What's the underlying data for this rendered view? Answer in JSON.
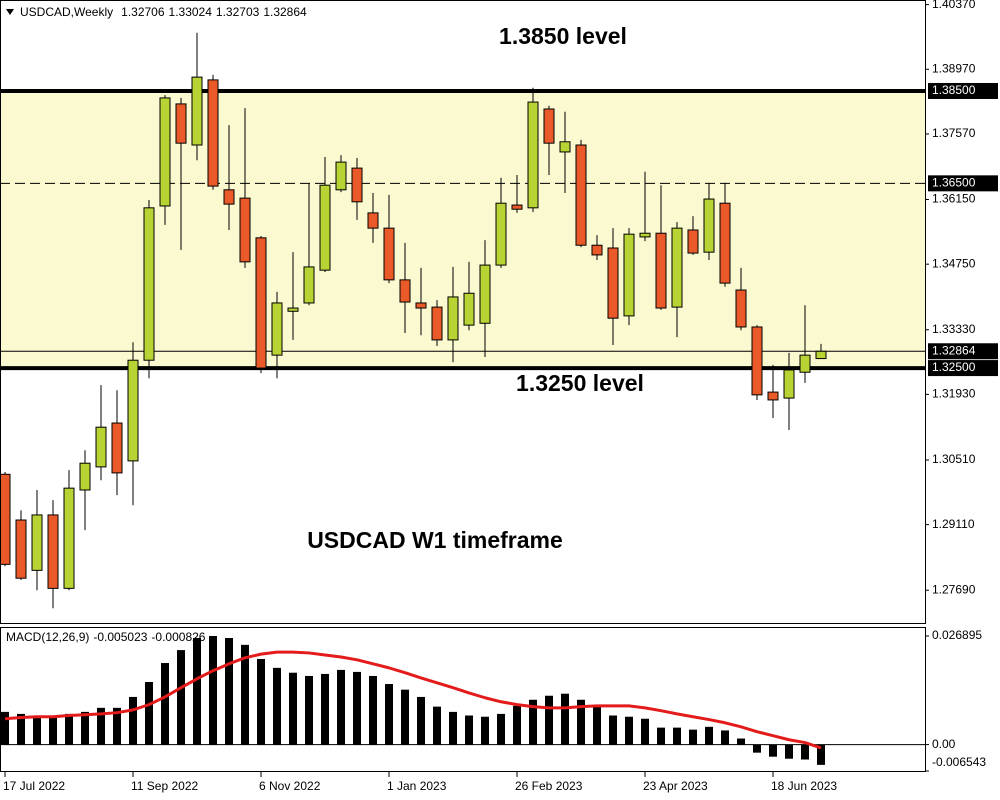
{
  "chart_data": [
    {
      "type": "candlestick",
      "title": "USDCAD,Weekly",
      "categories": [
        "17 Jul 2022",
        null,
        null,
        null,
        null,
        null,
        null,
        null,
        "11 Sep 2022",
        null,
        null,
        null,
        null,
        null,
        null,
        null,
        "6 Nov 2022",
        null,
        null,
        null,
        null,
        null,
        null,
        null,
        "1 Jan 2023",
        null,
        null,
        null,
        null,
        null,
        null,
        null,
        "26 Feb 2023",
        null,
        null,
        null,
        null,
        null,
        null,
        null,
        "23 Apr 2023",
        null,
        null,
        null,
        null,
        null,
        null,
        null,
        "18 Jun 2023",
        null,
        null,
        null
      ],
      "open": [
        1.302,
        1.2921,
        1.2812,
        1.2932,
        1.2773,
        1.2986,
        1.3036,
        1.3131,
        1.3049,
        1.3267,
        1.3601,
        1.3822,
        1.3733,
        1.3874,
        1.3636,
        1.3618,
        1.3532,
        1.3278,
        1.3373,
        1.3391,
        1.3462,
        1.3636,
        1.3683,
        1.3586,
        1.3553,
        1.3441,
        1.3391,
        1.3382,
        1.3311,
        1.3343,
        1.3347,
        1.3473,
        1.3603,
        1.3597,
        1.3811,
        1.3718,
        1.3733,
        1.3516,
        1.351,
        1.3363,
        1.3534,
        1.3542,
        1.3382,
        1.3549,
        1.3501,
        1.3607,
        1.3419,
        1.3339,
        1.3198,
        1.3185,
        1.3241,
        1.32706
      ],
      "high": [
        1.3025,
        1.2942,
        1.2986,
        1.2964,
        1.3029,
        1.3072,
        1.3213,
        1.3202,
        1.3306,
        1.3614,
        1.3841,
        1.3835,
        1.3976,
        1.3885,
        1.3776,
        1.3813,
        1.3536,
        1.3415,
        1.3501,
        1.3651,
        1.3707,
        1.3711,
        1.3705,
        1.3629,
        1.3625,
        1.3521,
        1.3467,
        1.3397,
        1.3469,
        1.348,
        1.3527,
        1.3662,
        1.3668,
        1.3857,
        1.3818,
        1.3805,
        1.3744,
        1.3538,
        1.3553,
        1.3553,
        1.3675,
        1.3646,
        1.3566,
        1.3579,
        1.3651,
        1.3651,
        1.3467,
        1.3343,
        1.3257,
        1.3283,
        1.3386,
        1.33024
      ],
      "low": [
        1.2821,
        1.2791,
        1.2769,
        1.273,
        1.2769,
        1.2899,
        1.3007,
        1.2975,
        1.2953,
        1.3228,
        1.356,
        1.3506,
        1.37,
        1.3636,
        1.3549,
        1.3467,
        1.3239,
        1.3228,
        1.3311,
        1.3386,
        1.3458,
        1.3631,
        1.3571,
        1.3521,
        1.3434,
        1.3326,
        1.3321,
        1.3298,
        1.3263,
        1.3332,
        1.3274,
        1.3467,
        1.3586,
        1.3588,
        1.3668,
        1.3629,
        1.3512,
        1.3484,
        1.33,
        1.3343,
        1.3525,
        1.3376,
        1.3317,
        1.3495,
        1.3484,
        1.3426,
        1.3332,
        1.3181,
        1.3142,
        1.3116,
        1.3218,
        1.32703
      ],
      "close": [
        1.2825,
        1.2795,
        1.2932,
        1.2773,
        1.299,
        1.3044,
        1.3122,
        1.3023,
        1.3267,
        1.3597,
        1.3835,
        1.3737,
        1.388,
        1.3644,
        1.3605,
        1.348,
        1.325,
        1.3391,
        1.338,
        1.3469,
        1.3646,
        1.3696,
        1.361,
        1.3553,
        1.3441,
        1.3393,
        1.338,
        1.3311,
        1.3404,
        1.3412,
        1.3473,
        1.3607,
        1.3594,
        1.3826,
        1.3737,
        1.374,
        1.3516,
        1.3495,
        1.3358,
        1.354,
        1.3542,
        1.338,
        1.3553,
        1.3499,
        1.3616,
        1.3434,
        1.3339,
        1.3192,
        1.3181,
        1.3246,
        1.3278,
        1.32864
      ],
      "up_color": "#b7d334",
      "down_color": "#ea5a28",
      "band_color": "#fbf9cf",
      "ylim": [
        1.2698,
        1.4047
      ],
      "yticks": [
        {
          "value": 1.4037,
          "label": "1.40370"
        },
        {
          "value": 1.3897,
          "label": "1.38970"
        },
        {
          "value": 1.3757,
          "label": "1.37570"
        },
        {
          "value": 1.3615,
          "label": "1.36150"
        },
        {
          "value": 1.3475,
          "label": "1.34750"
        },
        {
          "value": 1.3333,
          "label": "1.33330"
        },
        {
          "value": 1.3193,
          "label": "1.31930"
        },
        {
          "value": 1.3051,
          "label": "1.30510"
        },
        {
          "value": 1.2911,
          "label": "1.29110"
        },
        {
          "value": 1.2769,
          "label": "1.27690"
        }
      ],
      "levels": [
        {
          "price": {
            "value": 1.385,
            "label": "1.38500"
          },
          "style": "thick"
        },
        {
          "price": {
            "value": 1.365,
            "label": "1.36500"
          },
          "style": "dashed"
        },
        {
          "price": 1.32864,
          "style": "thin"
        },
        {
          "price": {
            "value": 1.325,
            "label": "1.32500"
          },
          "style": "thick"
        }
      ],
      "annotations": [
        "1.3850 level",
        "1.3250 level",
        "USDCAD W1 timeframe"
      ]
    },
    {
      "type": "macd",
      "title": "MACD(12,26,9)",
      "ylim": [
        -0.006543,
        0.026895
      ],
      "yticks": [
        0.026895,
        {
          "value": 0,
          "label": "0.00"
        },
        -0.006543
      ],
      "series": [
        {
          "type": "bar",
          "color": "#000000",
          "values": [
            0.0081,
            0.0076,
            0.0072,
            0.0072,
            0.0076,
            0.0081,
            0.0091,
            0.0091,
            0.0118,
            0.0155,
            0.0202,
            0.0234,
            0.0264,
            0.0269,
            0.0264,
            0.0247,
            0.0212,
            0.019,
            0.0178,
            0.017,
            0.0175,
            0.0185,
            0.018,
            0.017,
            0.015,
            0.0136,
            0.0118,
            0.0094,
            0.0081,
            0.0072,
            0.0069,
            0.0076,
            0.0096,
            0.0111,
            0.0121,
            0.0126,
            0.0111,
            0.0096,
            0.0072,
            0.0069,
            0.0064,
            0.0042,
            0.0042,
            0.0037,
            0.0044,
            0.0035,
            0.0015,
            -0.002,
            -0.003,
            -0.0035,
            -0.0037,
            -0.005023
          ]
        },
        {
          "type": "line",
          "color": "#e31b1b",
          "values": [
            0.0064,
            0.0067,
            0.0069,
            0.0069,
            0.0072,
            0.0074,
            0.0076,
            0.0079,
            0.0086,
            0.0099,
            0.0118,
            0.0141,
            0.0163,
            0.0183,
            0.02,
            0.0215,
            0.0224,
            0.0229,
            0.0229,
            0.0227,
            0.0222,
            0.0217,
            0.021,
            0.02,
            0.019,
            0.0178,
            0.0165,
            0.0153,
            0.0141,
            0.0128,
            0.0116,
            0.0106,
            0.0099,
            0.0094,
            0.0091,
            0.0091,
            0.0094,
            0.0096,
            0.0096,
            0.0096,
            0.0091,
            0.0084,
            0.0076,
            0.0069,
            0.0062,
            0.0054,
            0.0044,
            0.0032,
            0.0022,
            0.0012,
            0.0005,
            -0.000826
          ]
        }
      ]
    }
  ]
}
